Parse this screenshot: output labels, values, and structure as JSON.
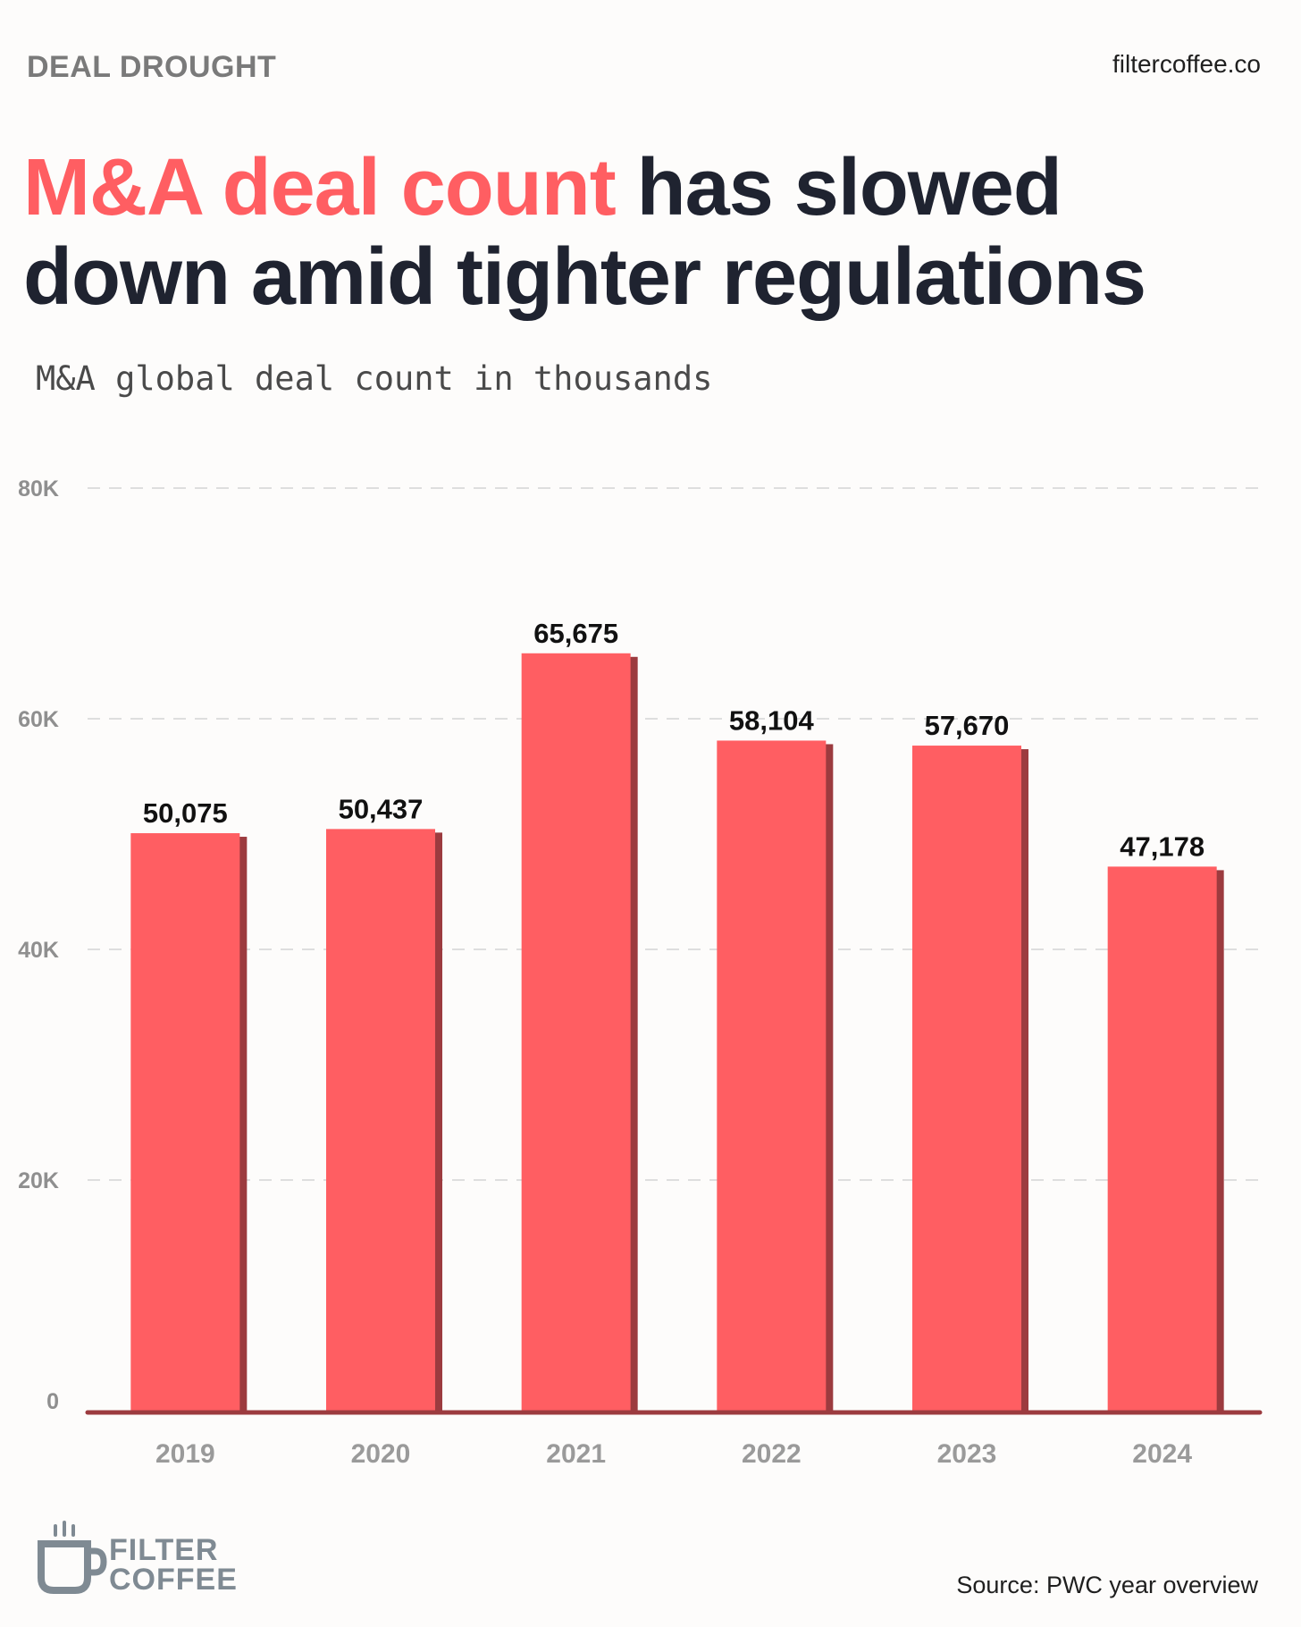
{
  "header": {
    "kicker": "DEAL DROUGHT",
    "site": "filtercoffee.co",
    "headline_highlight": "M&A deal count",
    "headline_rest": " has slowed down amid tighter regulations",
    "subtitle": "M&A global deal count in thousands"
  },
  "footer": {
    "logo_line1": "FILTER",
    "logo_line2": "COFFEE",
    "source": "Source: PWC year overview"
  },
  "colors": {
    "accent": "#ff5e62",
    "bar_shadow": "#9c3b3f",
    "headline": "#1f2330",
    "grid": "#dedede"
  },
  "chart_data": {
    "type": "bar",
    "title": "M&A global deal count in thousands",
    "categories": [
      "2019",
      "2020",
      "2021",
      "2022",
      "2023",
      "2024"
    ],
    "values": [
      50075,
      50437,
      65675,
      58104,
      57670,
      47178
    ],
    "value_labels": [
      "50,075",
      "50,437",
      "65,675",
      "58,104",
      "57,670",
      "47,178"
    ],
    "ylim": [
      0,
      80000
    ],
    "yticks": [
      0,
      20000,
      40000,
      60000,
      80000
    ],
    "ytick_labels": [
      "0",
      "20K",
      "40K",
      "60K",
      "80K"
    ],
    "grid": true,
    "xlabel": "",
    "ylabel": ""
  }
}
